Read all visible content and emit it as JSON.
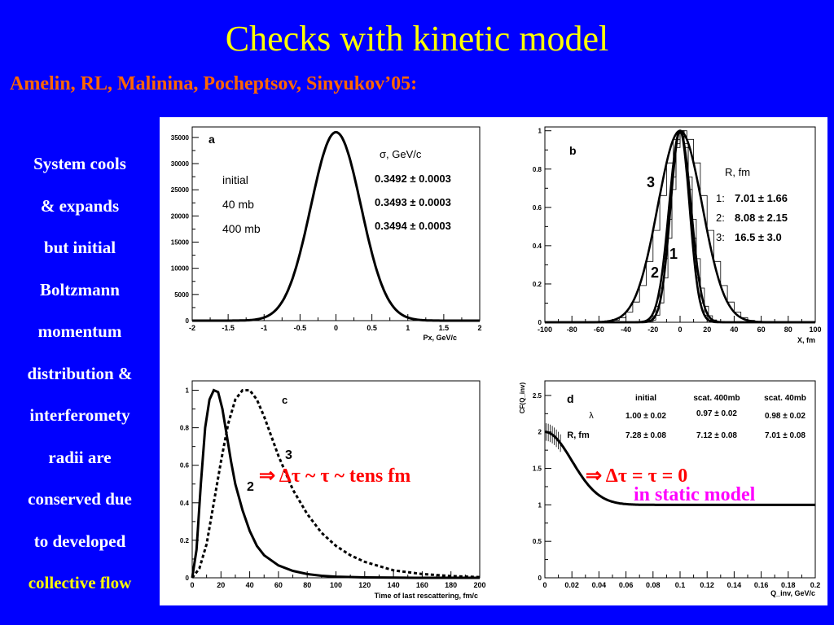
{
  "title": "Checks with kinetic model",
  "authors": "Amelin, RL, Malinina, Pocheptsov, Sinyukov’05:",
  "side_lines": [
    "System cools",
    "& expands",
    "but initial",
    "Boltzmann",
    "momentum",
    "distribution &",
    "interferomety",
    "radii are",
    "conserved due",
    "to developed"
  ],
  "side_highlight": "collective flow",
  "annotation_c": "⇒ Δτ ~ τ ~ tens fm",
  "annotation_d1": "⇒   Δτ = τ = 0",
  "annotation_d2": "in static model",
  "colors": {
    "background": "#0000ff",
    "title": "#ffff00",
    "authors": "#ff6600",
    "annotation_red": "#ff0000",
    "annotation_magenta": "#ff00ff",
    "panel": "#ffffff"
  },
  "chart_data": [
    {
      "panel": "a",
      "type": "line",
      "xlabel": "Px, GeV/c",
      "xlim": [
        -2,
        2
      ],
      "ylim": [
        0,
        37000
      ],
      "xticks": [
        "-2",
        "-1.5",
        "-1",
        "-0.5",
        "0",
        "0.5",
        "1",
        "1.5",
        "2"
      ],
      "yticks": [
        "0",
        "5000",
        "10000",
        "15000",
        "20000",
        "25000",
        "30000",
        "35000"
      ],
      "legend_header": "σ, GeV/c",
      "rows": [
        {
          "label": "initial",
          "value": "0.3492 ± 0.0003"
        },
        {
          "label": "40 mb",
          "value": "0.3493 ± 0.0003"
        },
        {
          "label": "400 mb",
          "value": "0.3494 ± 0.0003"
        }
      ],
      "series": [
        {
          "shape": "gaussian",
          "mean": 0,
          "sigma": 0.3492,
          "peak": 36000
        }
      ]
    },
    {
      "panel": "b",
      "type": "line",
      "xlabel": "X, fm",
      "xlim": [
        -100,
        100
      ],
      "ylim": [
        0,
        1.02
      ],
      "xticks": [
        "-100",
        "-80",
        "-60",
        "-40",
        "-20",
        "0",
        "20",
        "40",
        "60",
        "80",
        "100"
      ],
      "yticks": [
        "0",
        "0.2",
        "0.4",
        "0.6",
        "0.8",
        "1"
      ],
      "legend_header": "R, fm",
      "rows": [
        {
          "label": "1:",
          "value": "7.01 ± 1.66"
        },
        {
          "label": "2:",
          "value": "8.08 ± 2.15"
        },
        {
          "label": "3:",
          "value": "16.5 ± 3.0"
        }
      ],
      "curve_labels": [
        "1",
        "2",
        "3"
      ],
      "series": [
        {
          "name": "1",
          "shape": "gaussian",
          "mean": 0,
          "sigma": 7.01,
          "peak": 1
        },
        {
          "name": "2",
          "shape": "gaussian",
          "mean": 0,
          "sigma": 8.08,
          "peak": 1
        },
        {
          "name": "3",
          "shape": "gaussian",
          "mean": 0,
          "sigma": 16.5,
          "peak": 1
        }
      ]
    },
    {
      "panel": "c",
      "type": "line",
      "xlabel": "Time of last rescattering, fm/c",
      "xlim": [
        0,
        200
      ],
      "ylim": [
        0,
        1.05
      ],
      "xticks": [
        "0",
        "20",
        "40",
        "60",
        "80",
        "100",
        "120",
        "140",
        "160",
        "180",
        "200"
      ],
      "yticks": [
        "0",
        "0.2",
        "0.4",
        "0.6",
        "0.8",
        "1"
      ],
      "curve_labels": [
        "2",
        "3"
      ],
      "series": [
        {
          "name": "2",
          "style": "solid",
          "x": [
            0,
            3,
            6,
            9,
            12,
            15,
            18,
            21,
            24,
            27,
            30,
            35,
            40,
            45,
            50,
            60,
            70,
            80,
            90,
            100,
            120,
            140,
            160,
            180,
            200
          ],
          "y": [
            0,
            0.15,
            0.5,
            0.8,
            0.95,
            1.0,
            0.99,
            0.9,
            0.76,
            0.62,
            0.5,
            0.36,
            0.25,
            0.17,
            0.12,
            0.066,
            0.037,
            0.02,
            0.011,
            0.006,
            0.002,
            0.0007,
            0.0002,
            0.0001,
            0
          ]
        },
        {
          "name": "3",
          "style": "dashed",
          "x": [
            0,
            5,
            10,
            15,
            20,
            25,
            30,
            35,
            40,
            45,
            50,
            60,
            70,
            80,
            90,
            100,
            110,
            120,
            140,
            160,
            180,
            200
          ],
          "y": [
            0,
            0.05,
            0.18,
            0.4,
            0.62,
            0.82,
            0.95,
            1.0,
            1.0,
            0.95,
            0.86,
            0.65,
            0.47,
            0.34,
            0.24,
            0.17,
            0.12,
            0.085,
            0.04,
            0.02,
            0.009,
            0.004
          ]
        }
      ]
    },
    {
      "panel": "d",
      "type": "line",
      "ylabel": "CF(Q_inv)",
      "xlabel": "Q_inv, GeV/c",
      "xlim": [
        0,
        0.2
      ],
      "ylim": [
        0,
        2.7
      ],
      "xticks": [
        "0",
        "0.02",
        "0.04",
        "0.06",
        "0.08",
        "0.1",
        "0.12",
        "0.14",
        "0.16",
        "0.18",
        "0.2"
      ],
      "yticks": [
        "0",
        "0.5",
        "1",
        "1.5",
        "2",
        "2.5"
      ],
      "table_header": [
        "",
        "initial",
        "scat. 400mb",
        "scat. 40mb"
      ],
      "table_rows": [
        [
          "λ",
          "1.00 ± 0.02",
          "0.97 ± 0.02",
          "0.98 ± 0.02"
        ],
        [
          "R, fm",
          "7.28 ± 0.08",
          "7.12 ± 0.08",
          "7.01 ± 0.08"
        ]
      ],
      "series": [
        {
          "shape": "1+lambda*exp(-(qR)^2)",
          "lambda": 1.0,
          "R_fm": 7.01
        }
      ]
    }
  ]
}
